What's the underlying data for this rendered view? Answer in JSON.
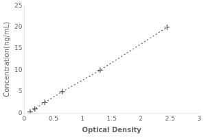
{
  "chart_data": {
    "type": "line",
    "xlabel": "Optical Density",
    "ylabel": "Concentration(ng/mL)",
    "x": [
      0.1,
      0.18,
      0.35,
      0.65,
      1.3,
      2.45
    ],
    "series": [
      {
        "values": [
          0.3,
          1.0,
          2.5,
          5.0,
          10.0,
          20.0
        ],
        "color": "#555555",
        "marker": "plus",
        "line_style": "dotted"
      }
    ],
    "xlim": [
      0,
      3
    ],
    "ylim": [
      0,
      25
    ],
    "xticks": [
      0,
      0.5,
      1,
      1.5,
      2,
      2.5,
      3
    ],
    "yticks": [
      0,
      5,
      10,
      15,
      20,
      25
    ],
    "grid": false
  }
}
